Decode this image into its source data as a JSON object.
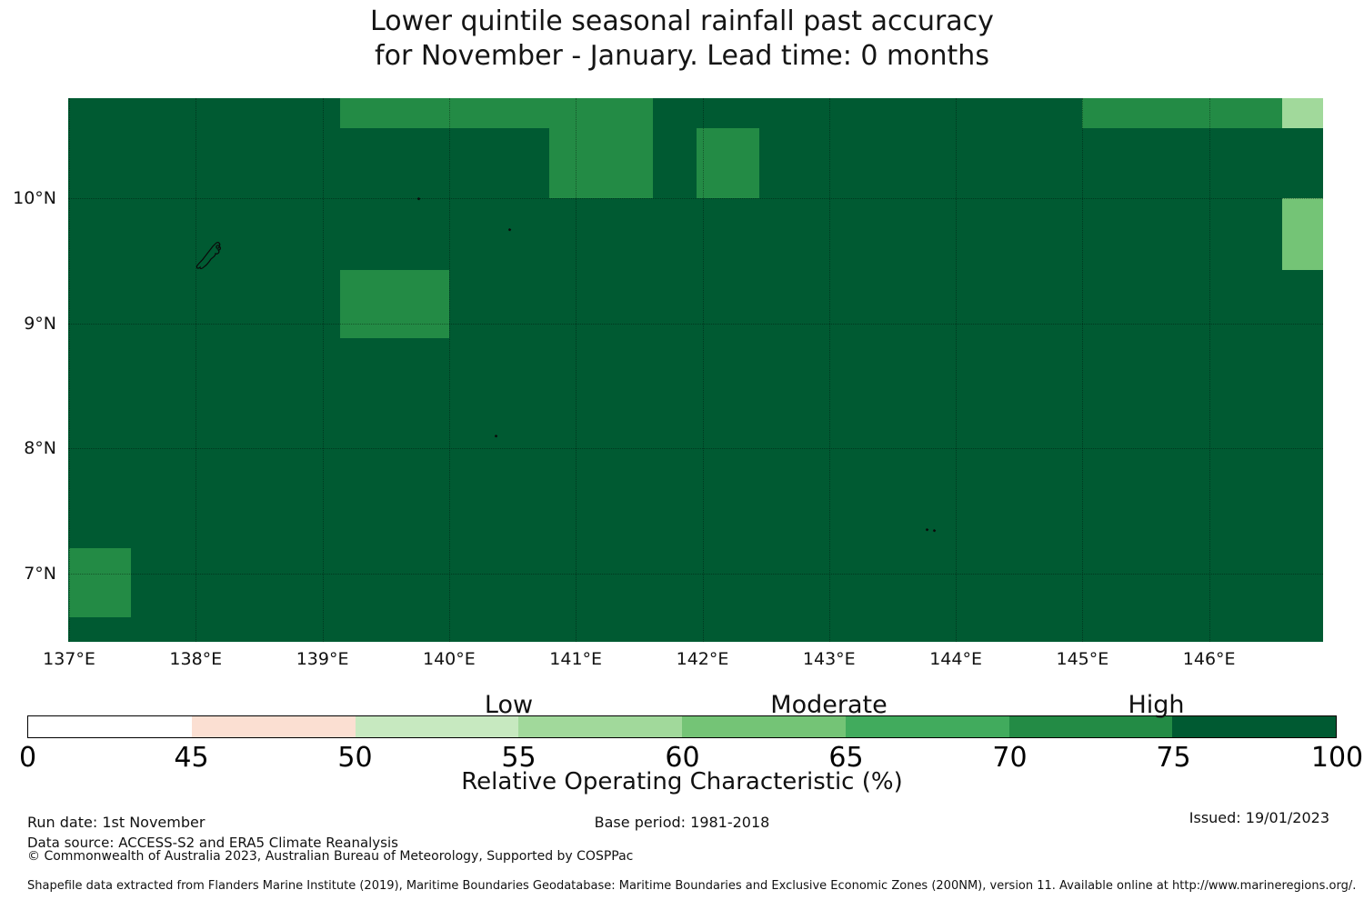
{
  "title": {
    "line1": "Lower quintile seasonal rainfall past accuracy",
    "line2": "for November - January. Lead time: 0 months"
  },
  "chart_data": {
    "type": "heatmap",
    "title": "Lower quintile seasonal rainfall past accuracy for November - January. Lead time: 0 months",
    "x_axis": {
      "tick_labels": [
        "137°E",
        "138°E",
        "139°E",
        "140°E",
        "141°E",
        "142°E",
        "143°E",
        "144°E",
        "145°E",
        "146°E"
      ],
      "tick_degrees": [
        137,
        138,
        139,
        140,
        141,
        142,
        143,
        144,
        145,
        146
      ]
    },
    "y_axis": {
      "tick_labels": [
        "10°N",
        "9°N",
        "8°N",
        "7°N"
      ],
      "tick_degrees": [
        10,
        9,
        8,
        7
      ]
    },
    "extent": {
      "lon_min": 137.0,
      "lon_max": 146.9,
      "lat_min": 6.46,
      "lat_max": 10.8
    },
    "grid": true,
    "background_cell": {
      "roc_percent": "75-100",
      "color": "#005a32"
    },
    "cells": [
      {
        "lon_min": 139.14,
        "lon_max": 141.61,
        "lat_min": 10.56,
        "lat_max": 10.8,
        "roc_percent": "70-75",
        "color": "#238b45"
      },
      {
        "lon_min": 140.79,
        "lon_max": 141.61,
        "lat_min": 10.0,
        "lat_max": 10.56,
        "roc_percent": "70-75",
        "color": "#238b45"
      },
      {
        "lon_min": 141.95,
        "lon_max": 142.45,
        "lat_min": 10.0,
        "lat_max": 10.56,
        "roc_percent": "70-75",
        "color": "#238b45"
      },
      {
        "lon_min": 145.0,
        "lon_max": 146.58,
        "lat_min": 10.56,
        "lat_max": 10.8,
        "roc_percent": "70-75",
        "color": "#238b45"
      },
      {
        "lon_min": 146.58,
        "lon_max": 146.9,
        "lat_min": 10.56,
        "lat_max": 10.8,
        "roc_percent": "55-60",
        "color": "#a1d99b"
      },
      {
        "lon_min": 146.58,
        "lon_max": 146.9,
        "lat_min": 9.43,
        "lat_max": 10.0,
        "roc_percent": "60-65",
        "color": "#74c476"
      },
      {
        "lon_min": 139.14,
        "lon_max": 140.0,
        "lat_min": 8.88,
        "lat_max": 9.43,
        "roc_percent": "70-75",
        "color": "#238b45"
      },
      {
        "lon_min": 137.0,
        "lon_max": 137.49,
        "lat_min": 6.65,
        "lat_max": 7.2,
        "roc_percent": "70-75",
        "color": "#238b45"
      }
    ],
    "colorbar": {
      "label": "Relative Operating Characteristic (%)",
      "boundaries": [
        "0",
        "45",
        "50",
        "55",
        "60",
        "65",
        "70",
        "75",
        "100"
      ],
      "colors": [
        "#ffffff",
        "#fbdfd2",
        "#c7e9c0",
        "#a1d99b",
        "#74c476",
        "#41ab5d",
        "#238b45",
        "#005a32"
      ],
      "categories": [
        {
          "label": "Low",
          "value": 55
        },
        {
          "label": "Moderate",
          "value": 65
        },
        {
          "label": "High",
          "value": 75
        }
      ]
    }
  },
  "footer": {
    "run_date": "Run date: 1st November",
    "base_period": "Base period: 1981-2018",
    "issued": "Issued: 19/01/2023",
    "data_source": "Data source: ACCESS-S2 and ERA5 Climate Reanalysis",
    "copyright": "© Commonwealth of Australia 2023, Australian Bureau of Meteorology, Supported by COSPPac",
    "shapefile_note": "Shapefile data extracted from Flanders Marine Institute (2019), Maritime Boundaries Geodatabase: Maritime Boundaries and Exclusive Economic Zones (200NM), version 11. Available online at http://www.marineregions.org/."
  }
}
